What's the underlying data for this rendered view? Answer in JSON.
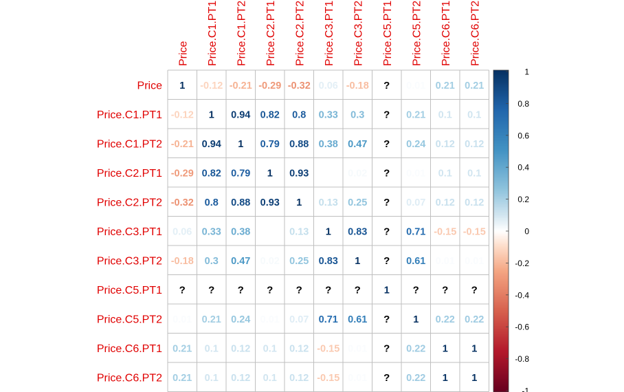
{
  "chart_data": {
    "type": "heatmap",
    "variables": [
      "Price",
      "Price.C1.PT1",
      "Price.C1.PT2",
      "Price.C2.PT1",
      "Price.C2.PT2",
      "Price.C3.PT1",
      "Price.C3.PT2",
      "Price.C5.PT1",
      "Price.C5.PT2",
      "Price.C6.PT1",
      "Price.C6.PT2"
    ],
    "matrix": [
      [
        1,
        -0.12,
        -0.21,
        -0.29,
        -0.32,
        0.06,
        -0.18,
        null,
        0.01,
        0.21,
        0.21
      ],
      [
        -0.12,
        1,
        0.94,
        0.82,
        0.8,
        0.33,
        0.3,
        null,
        0.21,
        0.1,
        0.1
      ],
      [
        -0.21,
        0.94,
        1,
        0.79,
        0.88,
        0.38,
        0.47,
        null,
        0.24,
        0.12,
        0.12
      ],
      [
        -0.29,
        0.82,
        0.79,
        1,
        0.93,
        0,
        0.02,
        null,
        0.01,
        0.1,
        0.1
      ],
      [
        -0.32,
        0.8,
        0.88,
        0.93,
        1,
        0.13,
        0.25,
        null,
        0.07,
        0.12,
        0.12
      ],
      [
        0.06,
        0.33,
        0.38,
        0,
        0.13,
        1,
        0.83,
        null,
        0.71,
        -0.15,
        -0.15
      ],
      [
        -0.18,
        0.3,
        0.47,
        0.02,
        0.25,
        0.83,
        1,
        null,
        0.61,
        0.01,
        0.01
      ],
      [
        null,
        null,
        null,
        null,
        null,
        null,
        null,
        1,
        null,
        null,
        null
      ],
      [
        0.01,
        0.21,
        0.24,
        0.01,
        0.07,
        0.71,
        0.61,
        null,
        1,
        0.22,
        0.22
      ],
      [
        0.21,
        0.1,
        0.12,
        0.1,
        0.12,
        -0.15,
        0.01,
        null,
        0.22,
        1,
        1
      ],
      [
        0.21,
        0.1,
        0.12,
        0.1,
        0.12,
        -0.15,
        0.01,
        null,
        0.22,
        1,
        1
      ]
    ],
    "missing_label": "?",
    "colorbar_ticks": [
      "1",
      "0.8",
      "0.6",
      "0.4",
      "0.2",
      "0",
      "-0.2",
      "-0.4",
      "-0.6",
      "-0.8",
      "-1"
    ],
    "scale": [
      -1,
      1
    ],
    "colors": {
      "label": "#e00000",
      "grid": "#bfbfbf",
      "low": "#67001f",
      "mid": "#ffffff",
      "high": "#053061"
    }
  }
}
